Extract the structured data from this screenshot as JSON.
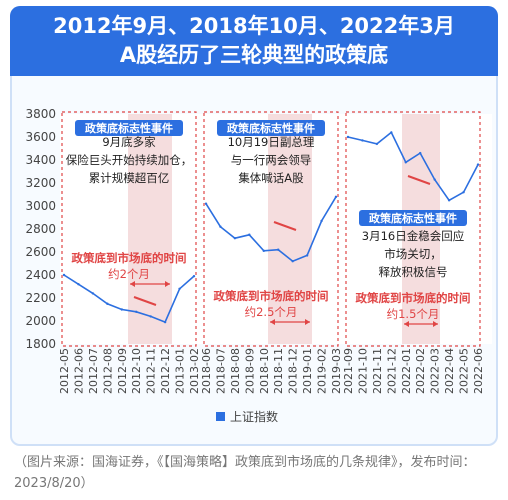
{
  "title_lines": [
    "2012年9月、2018年10月、2022年3月",
    "A股经历了三轮典型的政策底"
  ],
  "source_text": "（图片来源：国海证券，《【国海策略】政策底到市场底的几条规律》，发布时间：2023/8/20）",
  "colors": {
    "line": "#2c6fe0",
    "accent": "#e04545",
    "band": "#f3d4d6",
    "badge": "#2c6fe0"
  },
  "chart_data": {
    "type": "line",
    "title": "",
    "ylim": [
      1800,
      3800
    ],
    "yticks": [
      1800,
      2000,
      2200,
      2400,
      2600,
      2800,
      3000,
      3200,
      3400,
      3600,
      3800
    ],
    "legend": {
      "label": "上证指数",
      "placement": "bottom-center"
    },
    "panels": [
      {
        "x": [
          "2012-05",
          "2012-06",
          "2012-07",
          "2012-08",
          "2012-09",
          "2012-10",
          "2012-11",
          "2012-12",
          "2013-01",
          "2013-02"
        ],
        "values": [
          2400,
          2320,
          2240,
          2150,
          2100,
          2080,
          2040,
          1990,
          2280,
          2390
        ],
        "badge": "政策底标志性事件",
        "event_lines": [
          "9月底多家",
          "保险巨头开始持续加仓，",
          "累计规模超百亿"
        ],
        "gap_label": "政策底到市场底的时间",
        "gap_value": "约2个月"
      },
      {
        "x": [
          "2018-06",
          "2018-07",
          "2018-08",
          "2018-09",
          "2018-10",
          "2018-11",
          "2018-12",
          "2019-01",
          "2019-02",
          "2019-03"
        ],
        "values": [
          3020,
          2820,
          2720,
          2750,
          2610,
          2620,
          2520,
          2570,
          2870,
          3080
        ],
        "badge": "政策底标志性事件",
        "event_lines": [
          "10月19日副总理",
          "与一行两会领导",
          "集体喊话A股"
        ],
        "gap_label": "政策底到市场底的时间",
        "gap_value": "约2.5个月"
      },
      {
        "x": [
          "2021-09",
          "2021-10",
          "2021-11",
          "2021-12",
          "2022-01",
          "2022-02",
          "2022-03",
          "2022-04",
          "2022-05",
          "2022-06"
        ],
        "values": [
          3600,
          3570,
          3540,
          3640,
          3380,
          3460,
          3230,
          3050,
          3120,
          3360
        ],
        "badge": "政策底标志性事件",
        "event_lines": [
          "3月16日金稳会回应",
          "市场关切，",
          "释放积极信号"
        ],
        "gap_label": "政策底到市场底的时间",
        "gap_value": "约1.5个月"
      }
    ]
  }
}
